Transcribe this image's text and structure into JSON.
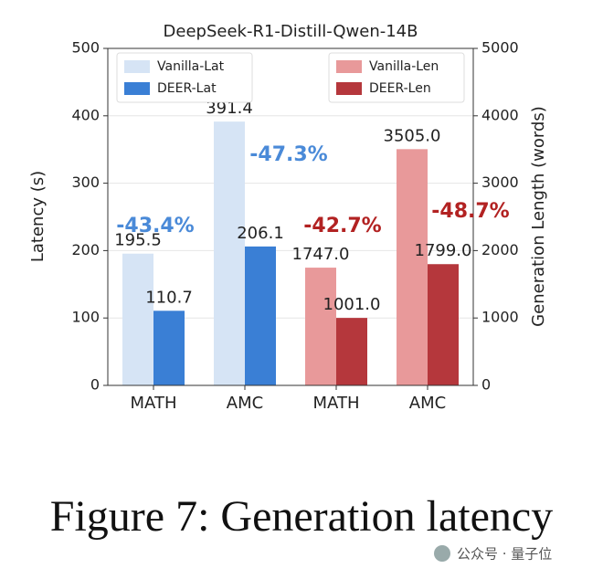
{
  "chart_data": {
    "type": "bar",
    "title": "DeepSeek-R1-Distill-Qwen-14B",
    "ylabel": "Latency (s)",
    "y2label": "Generation Length (words)",
    "categories": [
      "MATH",
      "AMC",
      "MATH",
      "AMC"
    ],
    "series": [
      {
        "name": "Vanilla-Lat",
        "color": "#d6e4f5",
        "axis": "y",
        "values": [
          195.5,
          391.4,
          null,
          null
        ]
      },
      {
        "name": "DEER-Lat",
        "color": "#3a7fd5",
        "axis": "y",
        "values": [
          110.7,
          206.1,
          null,
          null
        ]
      },
      {
        "name": "Vanilla-Len",
        "color": "#e8999a",
        "axis": "y2",
        "values": [
          null,
          null,
          1747,
          3505
        ],
        "value_labels": [
          null,
          null,
          "1747.0",
          "3505.0"
        ]
      },
      {
        "name": "DEER-Len",
        "color": "#b5373c",
        "axis": "y2",
        "values": [
          null,
          null,
          1001,
          1799
        ],
        "value_labels": [
          null,
          null,
          "1001.0",
          "1799.0"
        ]
      }
    ],
    "annotations": [
      {
        "text": "-43.4%",
        "color": "#4a8ad8"
      },
      {
        "text": "-47.3%",
        "color": "#4a8ad8"
      },
      {
        "text": "-42.7%",
        "color": "#b22222"
      },
      {
        "text": "-48.7%",
        "color": "#b22222"
      }
    ],
    "ylim": [
      0,
      500
    ],
    "yticks": [
      0,
      100,
      200,
      300,
      400,
      500
    ],
    "y2lim": [
      0,
      5000
    ],
    "y2ticks": [
      0,
      1000,
      2000,
      3000,
      4000,
      5000
    ],
    "grid": true,
    "legend": "upper left",
    "legend2": "upper right"
  },
  "caption": "Figure 7: Generation latency",
  "watermark": "公众号 · 量子位"
}
